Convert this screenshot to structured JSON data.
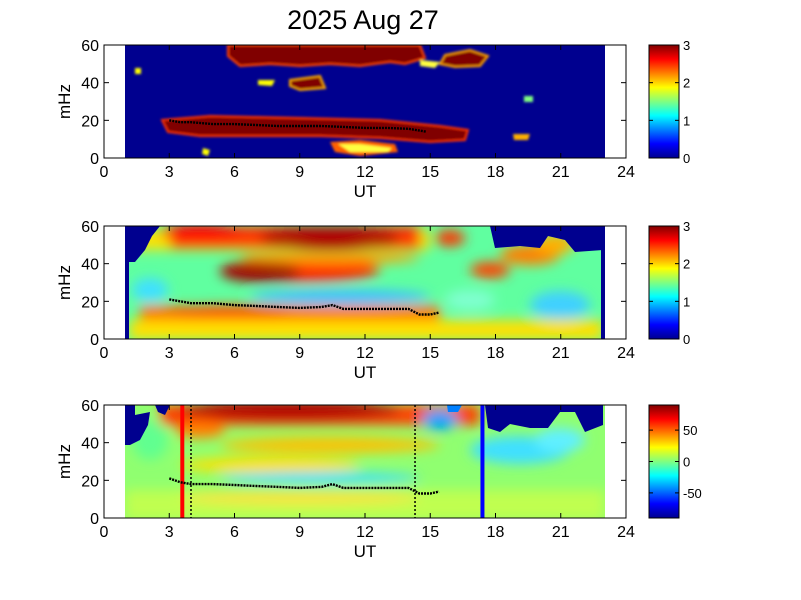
{
  "title": "2025 Aug 27",
  "colors": {
    "jet": [
      "#00008f",
      "#0000ff",
      "#0080ff",
      "#00ffff",
      "#80ff80",
      "#ffff00",
      "#ff8000",
      "#ff0000",
      "#800000"
    ],
    "ridge": "#000000",
    "marker_red": "#ff0000",
    "marker_blue": "#0000ff",
    "background_white": "#ffffff"
  },
  "chart_data": [
    {
      "type": "heatmap",
      "panel": "top",
      "xlabel": "UT",
      "ylabel": "mHz",
      "xlim": [
        0,
        24
      ],
      "ylim": [
        0,
        60
      ],
      "xticks": [
        "0",
        "3",
        "6",
        "9",
        "12",
        "15",
        "18",
        "21",
        "24"
      ],
      "yticks": [
        "0",
        "20",
        "40",
        "60"
      ],
      "colorbar": {
        "range": [
          0,
          3
        ],
        "ticks": [
          "0",
          "1",
          "2",
          "3"
        ]
      },
      "data_ut_range": [
        1.0,
        23.0
      ],
      "ridge_line": {
        "ut": [
          3.0,
          3.5,
          4.0,
          5.0,
          6.0,
          7.0,
          8.0,
          9.0,
          10.0,
          11.0,
          12.0,
          13.0,
          14.0,
          14.8
        ],
        "mhz": [
          20,
          19,
          19,
          18,
          18,
          17.5,
          17,
          17,
          17,
          16.5,
          16,
          16,
          15.5,
          14
        ]
      }
    },
    {
      "type": "heatmap",
      "panel": "middle",
      "xlabel": "UT",
      "ylabel": "mHz",
      "xlim": [
        0,
        24
      ],
      "ylim": [
        0,
        60
      ],
      "xticks": [
        "0",
        "3",
        "6",
        "9",
        "12",
        "15",
        "18",
        "21",
        "24"
      ],
      "yticks": [
        "0",
        "20",
        "40",
        "60"
      ],
      "colorbar": {
        "range": [
          0,
          3
        ],
        "ticks": [
          "0",
          "1",
          "2",
          "3"
        ]
      },
      "data_ut_range": [
        1.0,
        23.0
      ],
      "ridge_line": {
        "ut": [
          3.0,
          3.5,
          4.0,
          5.0,
          6.0,
          7.0,
          8.0,
          9.0,
          10.0,
          10.5,
          11.0,
          12.0,
          13.0,
          14.0,
          14.5,
          15.0,
          15.4
        ],
        "mhz": [
          21,
          20,
          19,
          19,
          18,
          17.5,
          17,
          16.5,
          17,
          18,
          16,
          16,
          16,
          16,
          13,
          13,
          14
        ]
      }
    },
    {
      "type": "heatmap",
      "panel": "bottom",
      "xlabel": "UT",
      "ylabel": "mHz",
      "xlim": [
        0,
        24
      ],
      "ylim": [
        0,
        60
      ],
      "xticks": [
        "0",
        "3",
        "6",
        "9",
        "12",
        "15",
        "18",
        "21",
        "24"
      ],
      "yticks": [
        "0",
        "20",
        "40",
        "60"
      ],
      "colorbar": {
        "range": [
          -90,
          90
        ],
        "ticks": [
          "50",
          "0",
          "-50"
        ]
      },
      "data_ut_range": [
        1.0,
        23.0
      ],
      "markers": {
        "red_line_ut": 3.6,
        "blue_line_ut": 17.4,
        "dotted_lines_ut": [
          4.0,
          14.3
        ]
      },
      "ridge_line": {
        "ut": [
          3.0,
          3.5,
          4.0,
          5.0,
          6.0,
          7.0,
          8.0,
          9.0,
          10.0,
          10.5,
          11.0,
          12.0,
          13.0,
          14.0,
          14.5,
          15.0,
          15.4
        ],
        "mhz": [
          21,
          19,
          18,
          18,
          17.5,
          17,
          16.5,
          16,
          16.5,
          18,
          16,
          16,
          16,
          16,
          13,
          13,
          14
        ]
      }
    }
  ]
}
